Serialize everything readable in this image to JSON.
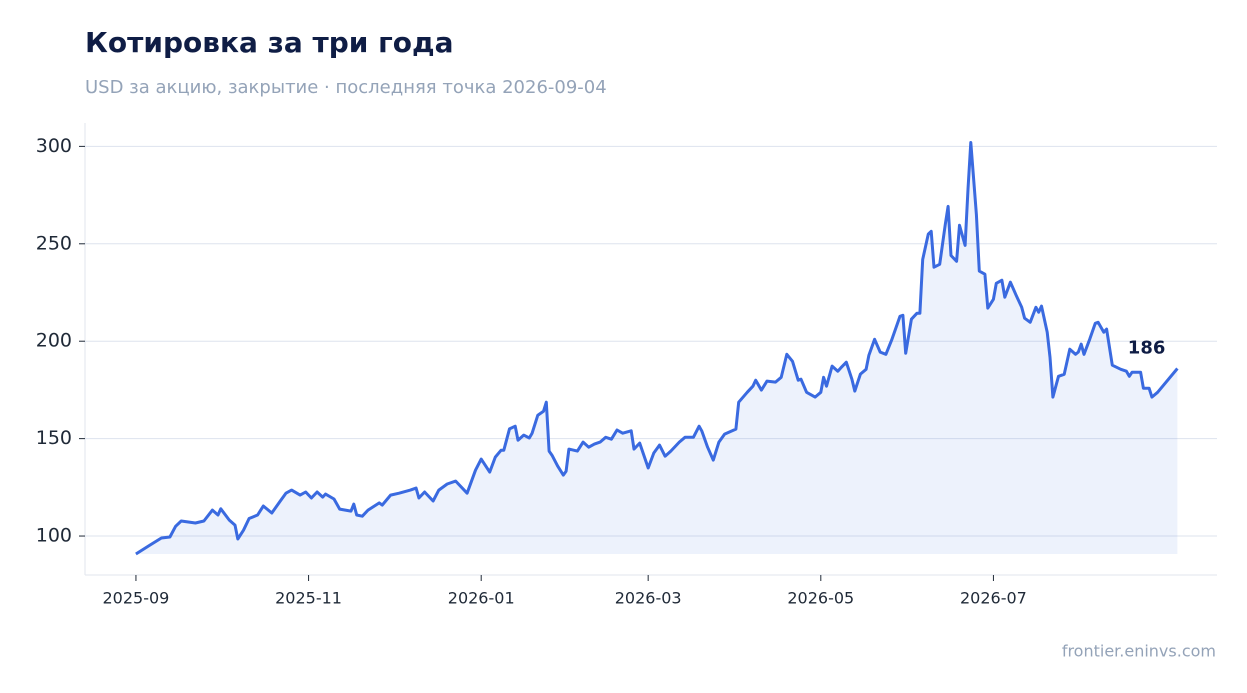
{
  "chart_data": {
    "type": "line",
    "title": "Котировка за три года",
    "subtitle": "USD за акцию, закрытие · последняя точка 2026-09-04",
    "source": "frontier.eninvs.com",
    "color": "#3a6ae0",
    "grid": true,
    "xlim": [
      "2025-08-14",
      "2026-09-18"
    ],
    "xticks": [
      "2025-09",
      "2025-11",
      "2026-01",
      "2026-03",
      "2026-05",
      "2026-07"
    ],
    "ylim": [
      80,
      312
    ],
    "yticks": [
      100,
      150,
      200,
      250,
      300
    ],
    "x": [
      "2025-09-01",
      "2025-09-06",
      "2025-09-10",
      "2025-09-13",
      "2025-09-15",
      "2025-09-17",
      "2025-09-22",
      "2025-09-25",
      "2025-09-28",
      "2025-09-30",
      "2025-10-01",
      "2025-10-04",
      "2025-10-06",
      "2025-10-07",
      "2025-10-09",
      "2025-10-11",
      "2025-10-14",
      "2025-10-16",
      "2025-10-19",
      "2025-10-22",
      "2025-10-24",
      "2025-10-26",
      "2025-10-29",
      "2025-10-31",
      "2025-11-02",
      "2025-11-04",
      "2025-11-06",
      "2025-11-07",
      "2025-11-10",
      "2025-11-12",
      "2025-11-16",
      "2025-11-17",
      "2025-11-18",
      "2025-11-20",
      "2025-11-22",
      "2025-11-26",
      "2025-11-27",
      "2025-11-30",
      "2025-12-03",
      "2025-12-07",
      "2025-12-09",
      "2025-12-10",
      "2025-12-12",
      "2025-12-15",
      "2025-12-17",
      "2025-12-20",
      "2025-12-23",
      "2025-12-27",
      "2025-12-30",
      "2026-01-01",
      "2026-01-04",
      "2026-01-06",
      "2026-01-08",
      "2026-01-09",
      "2026-01-11",
      "2026-01-13",
      "2026-01-14",
      "2026-01-16",
      "2026-01-18",
      "2026-01-19",
      "2026-01-21",
      "2026-01-23",
      "2026-01-24",
      "2026-01-25",
      "2026-01-26",
      "2026-01-28",
      "2026-01-30",
      "2026-01-31",
      "2026-02-01",
      "2026-02-04",
      "2026-02-06",
      "2026-02-08",
      "2026-02-10",
      "2026-02-12",
      "2026-02-14",
      "2026-02-16",
      "2026-02-18",
      "2026-02-20",
      "2026-02-23",
      "2026-02-24",
      "2026-02-26",
      "2026-03-01",
      "2026-03-03",
      "2026-03-05",
      "2026-03-07",
      "2026-03-09",
      "2026-03-12",
      "2026-03-14",
      "2026-03-17",
      "2026-03-19",
      "2026-03-20",
      "2026-03-22",
      "2026-03-24",
      "2026-03-26",
      "2026-03-28",
      "2026-04-01",
      "2026-04-02",
      "2026-04-05",
      "2026-04-07",
      "2026-04-08",
      "2026-04-10",
      "2026-04-12",
      "2026-04-15",
      "2026-04-17",
      "2026-04-19",
      "2026-04-21",
      "2026-04-23",
      "2026-04-24",
      "2026-04-26",
      "2026-04-29",
      "2026-05-01",
      "2026-05-02",
      "2026-05-03",
      "2026-05-05",
      "2026-05-07",
      "2026-05-08",
      "2026-05-10",
      "2026-05-12",
      "2026-05-13",
      "2026-05-15",
      "2026-05-17",
      "2026-05-18",
      "2026-05-20",
      "2026-05-22",
      "2026-05-24",
      "2026-05-26",
      "2026-05-29",
      "2026-05-30",
      "2026-05-31",
      "2026-06-02",
      "2026-06-04",
      "2026-06-05",
      "2026-06-06",
      "2026-06-08",
      "2026-06-09",
      "2026-06-10",
      "2026-06-12",
      "2026-06-14",
      "2026-06-15",
      "2026-06-16",
      "2026-06-18",
      "2026-06-19",
      "2026-06-21",
      "2026-06-22",
      "2026-06-23",
      "2026-06-25",
      "2026-06-26",
      "2026-06-28",
      "2026-06-29",
      "2026-07-01",
      "2026-07-02",
      "2026-07-04",
      "2026-07-05",
      "2026-07-07",
      "2026-07-09",
      "2026-07-11",
      "2026-07-12",
      "2026-07-14",
      "2026-07-16",
      "2026-07-17",
      "2026-07-18",
      "2026-07-20",
      "2026-07-21",
      "2026-07-22",
      "2026-07-24",
      "2026-07-26",
      "2026-07-28",
      "2026-07-30",
      "2026-07-31",
      "2026-08-01",
      "2026-08-02",
      "2026-08-04",
      "2026-08-06",
      "2026-08-07",
      "2026-08-09",
      "2026-08-10",
      "2026-08-12",
      "2026-08-15",
      "2026-08-17",
      "2026-08-18",
      "2026-08-19",
      "2026-08-22",
      "2026-08-23",
      "2026-08-25",
      "2026-08-26",
      "2026-08-28",
      "2026-09-04"
    ],
    "values": [
      90.8,
      95.4,
      99,
      99.5,
      105,
      107.7,
      106.7,
      107.7,
      113.3,
      110.8,
      114,
      108.2,
      105.6,
      98.5,
      103,
      109,
      110.8,
      115.4,
      111.8,
      118,
      122,
      123.6,
      121,
      122.6,
      119.5,
      122.6,
      120,
      121.5,
      119,
      113.8,
      112.8,
      116.4,
      110.8,
      110.2,
      113.3,
      117,
      115.9,
      121,
      122,
      123.6,
      124.6,
      119.5,
      122.6,
      118,
      123.6,
      126.7,
      128.2,
      122,
      133.8,
      139.5,
      132.8,
      140.5,
      144,
      144,
      155,
      156.4,
      149.2,
      151.8,
      150.3,
      152.8,
      162,
      164,
      168.7,
      143.6,
      141.5,
      136,
      131.3,
      133.3,
      144.6,
      143.6,
      148.2,
      145.6,
      147.2,
      148.2,
      150.7,
      149.7,
      154.4,
      152.8,
      154,
      144.6,
      147.7,
      134.9,
      142.6,
      146.7,
      141,
      143.6,
      148.2,
      150.7,
      150.7,
      156.4,
      153.8,
      145.6,
      139,
      148.2,
      152.3,
      154.9,
      168.7,
      173.8,
      176.9,
      180,
      174.9,
      179.5,
      179,
      181.5,
      193.3,
      189.7,
      180,
      180.5,
      173.8,
      171.3,
      173.8,
      181.5,
      176.9,
      187.2,
      184.6,
      186.2,
      189.2,
      180.5,
      174.4,
      183.1,
      185.6,
      192.8,
      201,
      194.4,
      193.3,
      200.5,
      212.8,
      213.3,
      193.8,
      211.3,
      214.4,
      214.4,
      242,
      255,
      256.4,
      238,
      239.5,
      260,
      269.2,
      244,
      241,
      259.5,
      249.2,
      278,
      302,
      265,
      236,
      234.4,
      217,
      221.5,
      229.7,
      231.3,
      222.6,
      230.3,
      223.6,
      217.4,
      211.8,
      209.7,
      217.4,
      214.9,
      218,
      204.6,
      191.8,
      171.3,
      182,
      183,
      195.9,
      193.3,
      194.4,
      198.5,
      193.3,
      201,
      209.2,
      209.7,
      204.6,
      206.2,
      187.7,
      185.6,
      184.6,
      182,
      184.1,
      184.1,
      175.9,
      175.9,
      171.3,
      173.8,
      186
    ]
  }
}
